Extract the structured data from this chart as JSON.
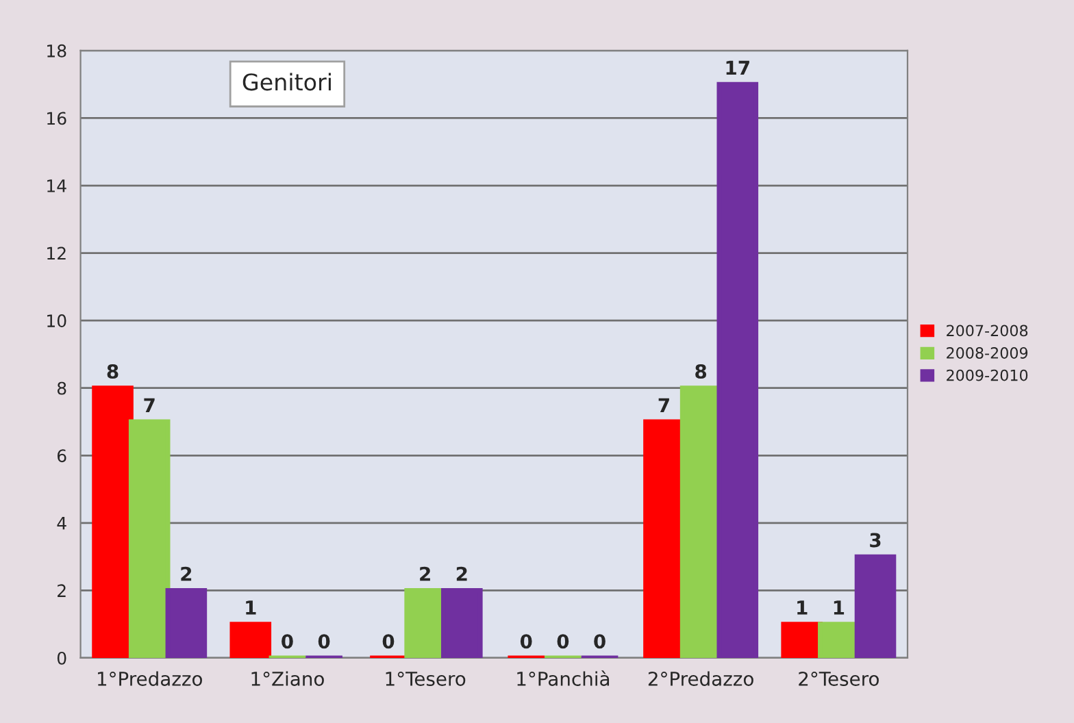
{
  "chart_data": {
    "type": "bar",
    "title": "Genitori",
    "categories": [
      "1°Predazzo",
      "1°Ziano",
      "1°Tesero",
      "1°Panchià",
      "2°Predazzo",
      "2°Tesero"
    ],
    "series": [
      {
        "name": "2007-2008",
        "color": "#ff0000",
        "values": [
          8,
          1,
          0,
          0,
          7,
          1
        ]
      },
      {
        "name": "2008-2009",
        "color": "#92d050",
        "values": [
          7,
          0,
          2,
          0,
          8,
          1
        ]
      },
      {
        "name": "2009-2010",
        "color": "#7030a0",
        "values": [
          2,
          0,
          2,
          0,
          17,
          3
        ]
      }
    ],
    "ylim": [
      0,
      18
    ],
    "yticks": [
      0,
      2,
      4,
      6,
      8,
      10,
      12,
      14,
      16,
      18
    ],
    "grid": "y",
    "legend": "right",
    "data_labels": true
  }
}
